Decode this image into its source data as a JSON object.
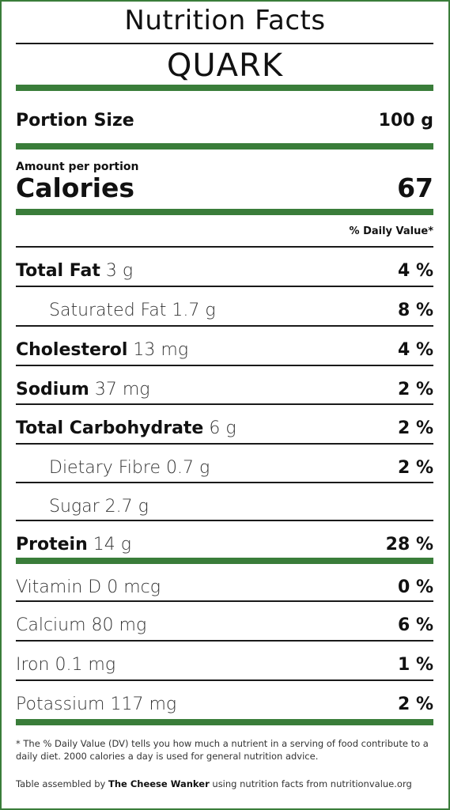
{
  "header": {
    "title": "Nutrition Facts",
    "product": "QUARK"
  },
  "portion": {
    "label": "Portion Size",
    "value": "100 g"
  },
  "calories": {
    "amount_label": "Amount per portion",
    "label": "Calories",
    "value": "67"
  },
  "dv_header": "% Daily Value*",
  "nutrients": [
    {
      "name": "Total Fat",
      "amount": "3 g",
      "dv": "4 %"
    },
    {
      "name": "Saturated Fat",
      "amount": "1.7 g",
      "dv": "8 %"
    },
    {
      "name": "Cholesterol",
      "amount": "13 mg",
      "dv": "4 %"
    },
    {
      "name": "Sodium",
      "amount": "37 mg",
      "dv": "2 %"
    },
    {
      "name": "Total Carbohydrate",
      "amount": "6 g",
      "dv": "2 %"
    },
    {
      "name": "Dietary Fibre",
      "amount": "0.7 g",
      "dv": "2 %"
    },
    {
      "name": "Sugar",
      "amount": "2.7 g",
      "dv": ""
    },
    {
      "name": "Protein",
      "amount": "14 g",
      "dv": "28 %"
    }
  ],
  "vitamins": [
    {
      "name": "Vitamin D",
      "amount": "0 mcg",
      "dv": "0 %"
    },
    {
      "name": "Calcium",
      "amount": "80 mg",
      "dv": "6 %"
    },
    {
      "name": "Iron",
      "amount": "0.1 mg",
      "dv": "1 %"
    },
    {
      "name": "Potassium",
      "amount": "117 mg",
      "dv": "2 %"
    }
  ],
  "footnote": "* The % Daily Value (DV) tells you how much a nutrient in a serving of food contribute to a daily diet. 2000 calories a day is used for general nutrition advice.",
  "credit": {
    "prefix": "Table assembled by",
    "author": "The Cheese Wanker",
    "suffix": "using nutrition facts from nutritionvalue.org"
  },
  "colors": {
    "accent_green": "#3a7d3a",
    "text": "#111111"
  }
}
